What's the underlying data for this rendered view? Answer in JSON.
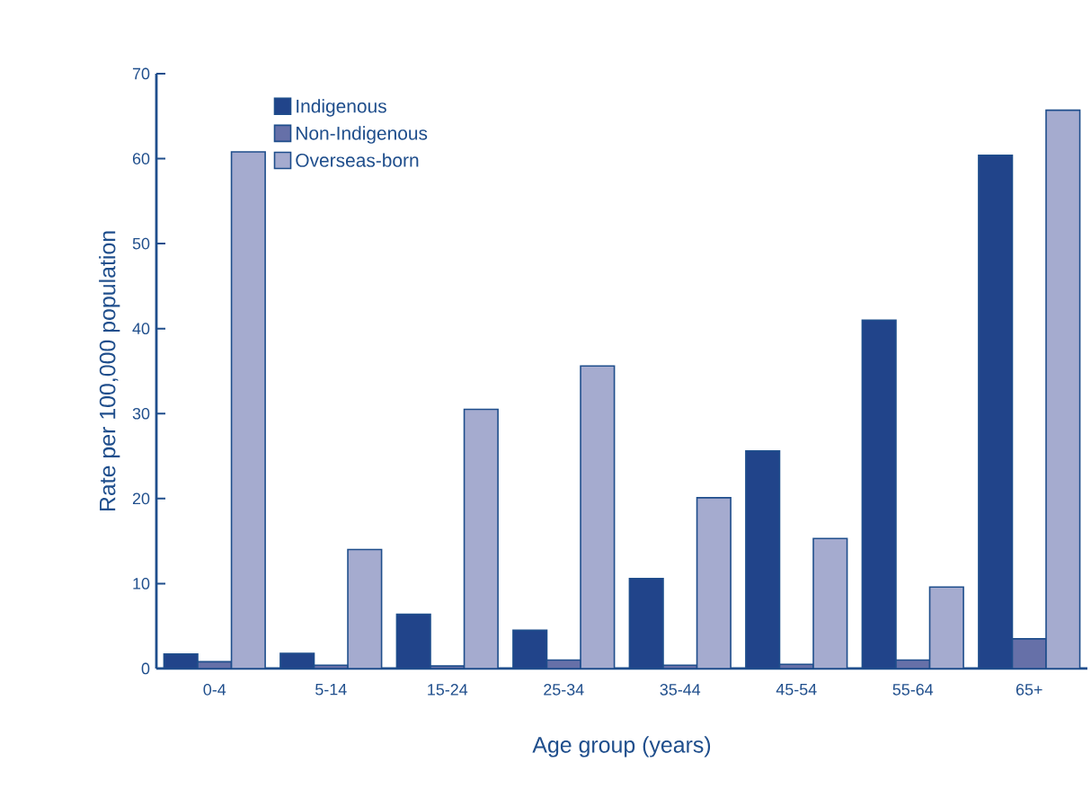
{
  "chart_data": {
    "type": "bar",
    "xlabel": "Age group (years)",
    "ylabel": "Rate per 100,000 population",
    "categories": [
      "0-4",
      "5-14",
      "15-24",
      "25-34",
      "35-44",
      "45-54",
      "55-64",
      "65+"
    ],
    "series": [
      {
        "name": "Indigenous",
        "color": "#21448a",
        "values": [
          1.7,
          1.8,
          6.4,
          4.5,
          10.6,
          25.6,
          41,
          60.4
        ]
      },
      {
        "name": "Non-Indigenous",
        "color": "#6670a8",
        "values": [
          0.8,
          0.4,
          0.3,
          1.0,
          0.4,
          0.5,
          1.0,
          3.5
        ]
      },
      {
        "name": "Overseas-born",
        "color": "#a5abcf",
        "values": [
          60.8,
          14,
          30.5,
          35.6,
          20.1,
          15.3,
          9.6,
          65.7
        ]
      }
    ],
    "ylim": [
      0,
      70
    ],
    "yticks": [
      0,
      10,
      20,
      30,
      40,
      50,
      60,
      70
    ],
    "grid": false,
    "legend": "top left"
  }
}
